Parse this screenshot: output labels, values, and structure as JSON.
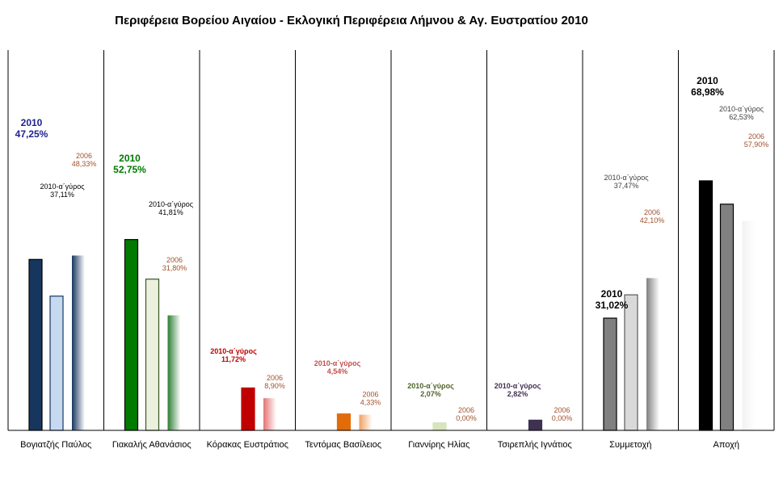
{
  "chart_data": {
    "type": "bar",
    "title": "Περιφέρεια Βορείου Αιγαίου - Εκλογική Περιφέρεια Λήμνου & Αγ. Ευστρατίου 2010",
    "ylim": [
      0,
      100
    ],
    "categories": [
      "Βογιατζής Παύλος",
      "Γιακαλής Αθανάσιος",
      "Κόρακας Ευστράτιος",
      "Τεντόμας Βασίλειος",
      "Γιαννίρης Ηλίας",
      "Τσιρεπλής Ιγνάτιος",
      "Συμμετοχή",
      "Αποχή"
    ],
    "series": [
      {
        "name": "2010",
        "values": [
          47.25,
          52.75,
          null,
          null,
          null,
          null,
          31.02,
          68.98
        ]
      },
      {
        "name": "2010-α΄γύρος",
        "values": [
          37.11,
          41.81,
          11.72,
          4.54,
          2.07,
          2.82,
          37.47,
          62.53
        ]
      },
      {
        "name": "2006",
        "values": [
          48.33,
          31.8,
          8.9,
          4.33,
          0.0,
          0.0,
          42.1,
          57.9
        ]
      }
    ],
    "value_labels": [
      [
        "2010\n47,25%",
        "2010-α΄γύρος\n37,11%",
        "2006\n48,33%"
      ],
      [
        "2010\n52,75%",
        "2010-α΄γύρος\n41,81%",
        "2006\n31,80%"
      ],
      [
        null,
        "2010-α΄γύρος\n11,72%",
        "2006\n8,90%"
      ],
      [
        null,
        "2010-α΄γύρος\n4,54%",
        "2006\n4,33%"
      ],
      [
        null,
        "2010-α΄γύρος\n2,07%",
        "2006\n0,00%"
      ],
      [
        null,
        "2010-α΄γύρος\n2,82%",
        "2006\n0,00%"
      ],
      [
        "2010\n31,02%",
        "2010-α΄γύρος\n37,47%",
        "2006\n42,10%"
      ],
      [
        "2010\n68,98%",
        "2010-α΄γύρος\n62,53%",
        "2006\n57,90%"
      ]
    ],
    "colors": {
      "candidates": [
        {
          "main": "#17365d",
          "mid": "#c6d9f1",
          "midStroke": "#17365d",
          "old": "#17365d",
          "label2010": "#1f1f8f",
          "labelRound": "#000000",
          "label2006": "#a0522d"
        },
        {
          "main": "#007a00",
          "mid": "#ebf1de",
          "midStroke": "#375623",
          "old": "#2e7d32",
          "label2010": "#007a00",
          "labelRound": "#000000",
          "label2006": "#a0522d"
        },
        {
          "main": "#c00000",
          "mid": "#c00000",
          "midStroke": "#c00000",
          "old": "#e57373",
          "label2010": "#c00000",
          "labelRound": "#c00000",
          "label2006": "#a0522d"
        },
        {
          "main": "#e36c0a",
          "mid": "#e36c0a",
          "midStroke": "#e36c0a",
          "old": "#f0a060",
          "label2010": "#c0504d",
          "labelRound": "#c0504d",
          "label2006": "#a0522d"
        },
        {
          "main": "#d7e4bd",
          "mid": "#d7e4bd",
          "midStroke": "#d7e4bd",
          "old": "#eef3e0",
          "label2010": "#4f6228",
          "labelRound": "#4f6228",
          "label2006": "#a0522d"
        },
        {
          "main": "#3f3151",
          "mid": "#3f3151",
          "midStroke": "#3f3151",
          "old": "#8a7fa0",
          "label2010": "#3f3151",
          "labelRound": "#3f3151",
          "label2006": "#a0522d"
        },
        {
          "main": "#808080",
          "mid": "#d9d9d9",
          "midStroke": "#595959",
          "old": "#808080",
          "label2010": "#000000",
          "labelRound": "#404040",
          "label2006": "#a0522d"
        },
        {
          "main": "#000000",
          "mid": "#808080",
          "midStroke": "#000000",
          "old": "#f2f2f2",
          "label2010": "#000000",
          "labelRound": "#404040",
          "label2006": "#a0522d"
        }
      ]
    },
    "grid": false,
    "legend": "none"
  }
}
